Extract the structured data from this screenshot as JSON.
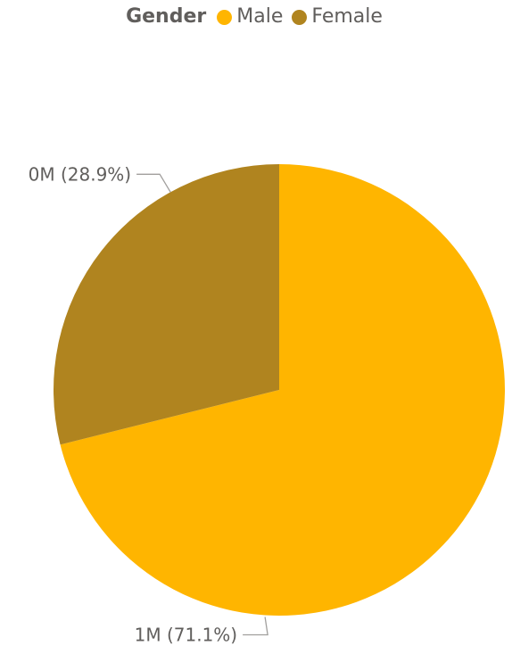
{
  "legend": {
    "title": "Gender"
  },
  "chart_data": {
    "type": "pie",
    "legend_position": "top-center",
    "slices": [
      {
        "name": "Male",
        "value": 71.1,
        "label": "1M (71.1%)",
        "color": "#FFB500"
      },
      {
        "name": "Female",
        "value": 28.9,
        "label": "0M (28.9%)",
        "color": "#B0841F"
      }
    ]
  }
}
